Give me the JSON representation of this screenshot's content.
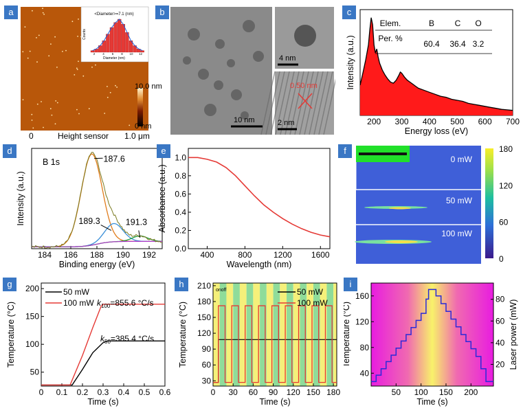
{
  "panels": {
    "a": {
      "label": "a",
      "inset_title": "<Diameter>=7.1 (nm)",
      "inset_xlabel": "Diameter (nm)",
      "inset_ylabel": "Counts",
      "inset_ticks": [
        "2",
        "4",
        "6",
        "8",
        "10",
        "12"
      ],
      "scale_top": "10.0 nm",
      "scale_bottom": "0 nm",
      "x_left": "0",
      "x_mid": "Height sensor",
      "x_right": "1.0 μm"
    },
    "b": {
      "label": "b",
      "scale1": "10 nm",
      "scale2": "4 nm",
      "scale3": "2 nm",
      "lattice": "0.50 nm"
    },
    "c": {
      "label": "c"
    },
    "d": {
      "label": "d"
    },
    "e": {
      "label": "e"
    },
    "f": {
      "label": "f",
      "p0": "0 mW",
      "p50": "50 mW",
      "p100": "100 mW"
    },
    "g": {
      "label": "g"
    },
    "h": {
      "label": "h",
      "onoff": "onoff"
    },
    "i": {
      "label": "i"
    }
  },
  "chart_data": [
    {
      "id": "c",
      "type": "area",
      "xlabel": "Energy loss (eV)",
      "ylabel": "Intensity (a.u.)",
      "xlim": [
        150,
        700
      ],
      "xticks": [
        200,
        300,
        400,
        500,
        600,
        700
      ],
      "x": [
        150,
        160,
        170,
        180,
        185,
        190,
        195,
        200,
        205,
        210,
        215,
        220,
        230,
        240,
        250,
        260,
        270,
        280,
        290,
        295,
        300,
        310,
        320,
        330,
        340,
        350,
        360,
        380,
        400,
        420,
        440,
        460,
        480,
        500,
        520,
        540,
        560,
        580,
        600,
        620,
        640,
        660,
        680,
        700
      ],
      "y": [
        0.3,
        0.42,
        0.55,
        0.7,
        0.85,
        0.97,
        0.9,
        0.7,
        0.62,
        0.66,
        0.58,
        0.52,
        0.45,
        0.4,
        0.36,
        0.33,
        0.32,
        0.35,
        0.4,
        0.43,
        0.42,
        0.38,
        0.35,
        0.33,
        0.31,
        0.29,
        0.27,
        0.25,
        0.23,
        0.21,
        0.19,
        0.18,
        0.16,
        0.15,
        0.14,
        0.12,
        0.11,
        0.1,
        0.09,
        0.08,
        0.07,
        0.06,
        0.055,
        0.05
      ],
      "table": {
        "headers": [
          "Elem.",
          "B",
          "C",
          "O"
        ],
        "row_label": "Per. %",
        "values": [
          "60.4",
          "36.4",
          "3.2"
        ]
      }
    },
    {
      "id": "d",
      "type": "line",
      "title": "B 1s",
      "xlabel": "Binding energy (eV)",
      "ylabel": "Intensity (a.u.)",
      "xlim": [
        183,
        193
      ],
      "xticks": [
        184,
        186,
        188,
        190,
        192
      ],
      "peaks": [
        {
          "label": "187.6",
          "center": 187.6,
          "height": 1.0,
          "width": 0.8
        },
        {
          "label": "189.3",
          "center": 189.3,
          "height": 0.2,
          "width": 0.7
        },
        {
          "label": "191.3",
          "center": 191.3,
          "height": 0.06,
          "width": 0.6
        }
      ]
    },
    {
      "id": "e",
      "type": "line",
      "xlabel": "Wavelength (nm)",
      "ylabel": "Absorbance (a.u.)",
      "xlim": [
        200,
        1700
      ],
      "ylim": [
        0,
        1.1
      ],
      "xticks": [
        400,
        800,
        1200,
        1600
      ],
      "yticks": [
        0.0,
        0.2,
        0.4,
        0.6,
        0.8,
        1.0
      ],
      "x": [
        200,
        300,
        400,
        500,
        600,
        700,
        800,
        900,
        1000,
        1100,
        1200,
        1300,
        1400,
        1500,
        1600,
        1700
      ],
      "y": [
        1.0,
        1.0,
        0.98,
        0.95,
        0.89,
        0.8,
        0.69,
        0.58,
        0.48,
        0.4,
        0.33,
        0.27,
        0.22,
        0.18,
        0.15,
        0.13
      ]
    },
    {
      "id": "f",
      "type": "heatmap",
      "colorbar_ticks": [
        0,
        60,
        120,
        180
      ]
    },
    {
      "id": "g",
      "type": "line",
      "xlabel": "Time (s)",
      "ylabel": "Temperature (°C)",
      "xlim": [
        0,
        0.6
      ],
      "ylim": [
        25,
        210
      ],
      "xticks": [
        0,
        0.1,
        0.2,
        0.3,
        0.4,
        0.5,
        0.6
      ],
      "yticks": [
        50,
        100,
        150,
        200
      ],
      "series": [
        {
          "name": "50 mW",
          "color": "#000000",
          "x": [
            0,
            0.15,
            0.2,
            0.25,
            0.3,
            0.32,
            0.6
          ],
          "y": [
            27,
            27,
            55,
            85,
            103,
            106,
            106
          ]
        },
        {
          "name": "100 mW",
          "color": "#e53935",
          "x": [
            0,
            0.14,
            0.2,
            0.25,
            0.29,
            0.3,
            0.6
          ],
          "y": [
            27,
            27,
            80,
            130,
            168,
            172,
            172
          ]
        }
      ],
      "annotations": [
        {
          "text": "k100=855.6 °C/s",
          "k": "k",
          "sub": "100",
          "rest": "=855.6 °C/s"
        },
        {
          "text": "k50=385.4 °C/s",
          "k": "k",
          "sub": "50",
          "rest": "=385.4 °C/s"
        }
      ]
    },
    {
      "id": "h",
      "type": "line",
      "xlabel": "Time (s)",
      "ylabel": "Temperature (°C)",
      "xlim": [
        0,
        185
      ],
      "ylim": [
        20,
        215
      ],
      "xticks": [
        0,
        30,
        60,
        90,
        120,
        150,
        180
      ],
      "yticks": [
        30,
        60,
        90,
        120,
        150,
        180,
        210
      ],
      "period": 20,
      "on_duration": 10,
      "series": [
        {
          "name": "50 mW",
          "color": "#000000",
          "low": 27,
          "high": 108
        },
        {
          "name": "100 mW",
          "color": "#e53935",
          "low": 27,
          "high": 172
        }
      ]
    },
    {
      "id": "i",
      "type": "line",
      "xlabel": "Time (s)",
      "ylabel": "Temperature (°C)",
      "y2label": "Laser power (mW)",
      "xlim": [
        0,
        245
      ],
      "ylim": [
        20,
        180
      ],
      "xticks": [
        50,
        100,
        150,
        200
      ],
      "yticks": [
        40,
        80,
        120,
        160
      ],
      "y2lim": [
        0,
        95
      ],
      "y2ticks": [
        20,
        40,
        60,
        80
      ],
      "steps": [
        [
          0,
          27
        ],
        [
          10,
          27
        ],
        [
          10,
          37
        ],
        [
          20,
          37
        ],
        [
          20,
          47
        ],
        [
          30,
          47
        ],
        [
          30,
          58
        ],
        [
          40,
          58
        ],
        [
          40,
          68
        ],
        [
          50,
          68
        ],
        [
          50,
          79
        ],
        [
          60,
          79
        ],
        [
          60,
          90
        ],
        [
          70,
          90
        ],
        [
          70,
          100
        ],
        [
          80,
          100
        ],
        [
          80,
          111
        ],
        [
          90,
          111
        ],
        [
          90,
          122
        ],
        [
          100,
          122
        ],
        [
          100,
          133
        ],
        [
          110,
          133
        ],
        [
          110,
          155
        ],
        [
          115,
          155
        ],
        [
          115,
          170
        ],
        [
          130,
          170
        ],
        [
          130,
          160
        ],
        [
          140,
          160
        ],
        [
          140,
          148
        ],
        [
          150,
          148
        ],
        [
          150,
          136
        ],
        [
          160,
          136
        ],
        [
          160,
          124
        ],
        [
          170,
          124
        ],
        [
          170,
          112
        ],
        [
          180,
          112
        ],
        [
          180,
          100
        ],
        [
          190,
          100
        ],
        [
          190,
          89
        ],
        [
          200,
          89
        ],
        [
          200,
          78
        ],
        [
          210,
          78
        ],
        [
          210,
          66
        ],
        [
          220,
          66
        ],
        [
          220,
          47
        ],
        [
          230,
          47
        ],
        [
          230,
          27
        ],
        [
          245,
          27
        ]
      ]
    }
  ]
}
